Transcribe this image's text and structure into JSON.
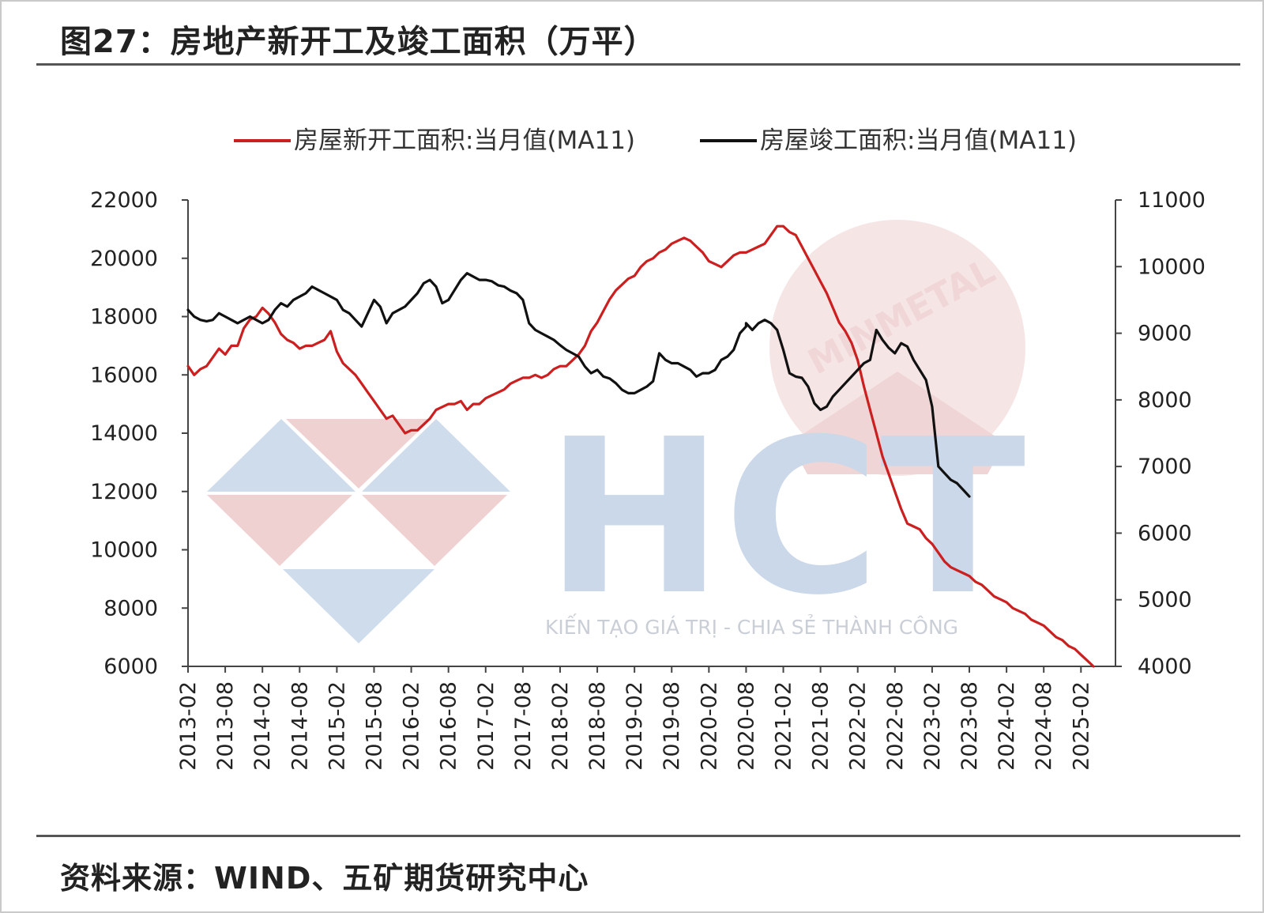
{
  "title": "图27：房地产新开工及竣工面积（万平）",
  "source": "资料来源：WIND、五矿期货研究中心",
  "watermark": {
    "brand": "HCT",
    "tagline": "KIẾN TẠO GIÁ TRỊ - CHIA SẺ THÀNH CÔNG",
    "seal_text": "MINMETAL",
    "colors": {
      "blue": "#c8d6e8",
      "red": "#eec9c9",
      "seal": "#f2dede"
    }
  },
  "chart_data": {
    "type": "line",
    "legend_position": "top",
    "grid": false,
    "x_ticks": [
      "2013-02",
      "2013-08",
      "2014-02",
      "2014-08",
      "2015-02",
      "2015-08",
      "2016-02",
      "2016-08",
      "2017-02",
      "2017-08",
      "2018-02",
      "2018-08",
      "2019-02",
      "2019-08",
      "2020-02",
      "2020-08",
      "2021-02",
      "2021-08",
      "2022-02",
      "2022-08",
      "2023-02",
      "2023-08",
      "2024-02",
      "2024-08",
      "2025-02"
    ],
    "x_range": [
      "2013-02",
      "2025-04"
    ],
    "left_axis": {
      "ylim": [
        6000,
        22000
      ],
      "ticks": [
        22000,
        20000,
        18000,
        16000,
        14000,
        12000,
        10000,
        8000,
        6000
      ]
    },
    "right_axis": {
      "ylim": [
        4000,
        11000
      ],
      "ticks": [
        11000,
        10000,
        9000,
        8000,
        7000,
        6000,
        5000,
        4000
      ]
    },
    "series": [
      {
        "name": "房屋新开工面积:当月值(MA11)",
        "axis": "left",
        "color": "#cc1f1f",
        "points": [
          [
            "2013-02",
            16300
          ],
          [
            "2013-03",
            16000
          ],
          [
            "2013-04",
            16200
          ],
          [
            "2013-05",
            16300
          ],
          [
            "2013-06",
            16600
          ],
          [
            "2013-07",
            16900
          ],
          [
            "2013-08",
            16700
          ],
          [
            "2013-09",
            17000
          ],
          [
            "2013-10",
            17000
          ],
          [
            "2013-11",
            17600
          ],
          [
            "2013-12",
            17900
          ],
          [
            "2014-01",
            18000
          ],
          [
            "2014-02",
            18300
          ],
          [
            "2014-03",
            18100
          ],
          [
            "2014-04",
            17800
          ],
          [
            "2014-05",
            17400
          ],
          [
            "2014-06",
            17200
          ],
          [
            "2014-07",
            17100
          ],
          [
            "2014-08",
            16900
          ],
          [
            "2014-09",
            17000
          ],
          [
            "2014-10",
            17000
          ],
          [
            "2014-11",
            17100
          ],
          [
            "2014-12",
            17200
          ],
          [
            "2015-01",
            17500
          ],
          [
            "2015-02",
            16800
          ],
          [
            "2015-03",
            16400
          ],
          [
            "2015-04",
            16200
          ],
          [
            "2015-05",
            16000
          ],
          [
            "2015-06",
            15700
          ],
          [
            "2015-07",
            15400
          ],
          [
            "2015-08",
            15100
          ],
          [
            "2015-09",
            14800
          ],
          [
            "2015-10",
            14500
          ],
          [
            "2015-11",
            14600
          ],
          [
            "2015-12",
            14300
          ],
          [
            "2016-01",
            14000
          ],
          [
            "2016-02",
            14100
          ],
          [
            "2016-03",
            14100
          ],
          [
            "2016-04",
            14300
          ],
          [
            "2016-05",
            14500
          ],
          [
            "2016-06",
            14800
          ],
          [
            "2016-07",
            14900
          ],
          [
            "2016-08",
            15000
          ],
          [
            "2016-09",
            15000
          ],
          [
            "2016-10",
            15100
          ],
          [
            "2016-11",
            14800
          ],
          [
            "2016-12",
            15000
          ],
          [
            "2017-01",
            15000
          ],
          [
            "2017-02",
            15200
          ],
          [
            "2017-03",
            15300
          ],
          [
            "2017-04",
            15400
          ],
          [
            "2017-05",
            15500
          ],
          [
            "2017-06",
            15700
          ],
          [
            "2017-07",
            15800
          ],
          [
            "2017-08",
            15900
          ],
          [
            "2017-09",
            15900
          ],
          [
            "2017-10",
            16000
          ],
          [
            "2017-11",
            15900
          ],
          [
            "2017-12",
            16000
          ],
          [
            "2018-01",
            16200
          ],
          [
            "2018-02",
            16300
          ],
          [
            "2018-03",
            16300
          ],
          [
            "2018-04",
            16500
          ],
          [
            "2018-05",
            16700
          ],
          [
            "2018-06",
            17000
          ],
          [
            "2018-07",
            17500
          ],
          [
            "2018-08",
            17800
          ],
          [
            "2018-09",
            18200
          ],
          [
            "2018-10",
            18600
          ],
          [
            "2018-11",
            18900
          ],
          [
            "2018-12",
            19100
          ],
          [
            "2019-01",
            19300
          ],
          [
            "2019-02",
            19400
          ],
          [
            "2019-03",
            19700
          ],
          [
            "2019-04",
            19900
          ],
          [
            "2019-05",
            20000
          ],
          [
            "2019-06",
            20200
          ],
          [
            "2019-07",
            20300
          ],
          [
            "2019-08",
            20500
          ],
          [
            "2019-09",
            20600
          ],
          [
            "2019-10",
            20700
          ],
          [
            "2019-11",
            20600
          ],
          [
            "2019-12",
            20400
          ],
          [
            "2020-01",
            20200
          ],
          [
            "2020-02",
            19900
          ],
          [
            "2020-03",
            19800
          ],
          [
            "2020-04",
            19700
          ],
          [
            "2020-05",
            19900
          ],
          [
            "2020-06",
            20100
          ],
          [
            "2020-07",
            20200
          ],
          [
            "2020-08",
            20200
          ],
          [
            "2020-09",
            20300
          ],
          [
            "2020-10",
            20400
          ],
          [
            "2020-11",
            20500
          ],
          [
            "2020-12",
            20800
          ],
          [
            "2021-01",
            21100
          ],
          [
            "2021-02",
            21100
          ],
          [
            "2021-03",
            20900
          ],
          [
            "2021-04",
            20800
          ],
          [
            "2021-05",
            20400
          ],
          [
            "2021-06",
            20000
          ],
          [
            "2021-07",
            19600
          ],
          [
            "2021-08",
            19200
          ],
          [
            "2021-09",
            18800
          ],
          [
            "2021-10",
            18300
          ],
          [
            "2021-11",
            17800
          ],
          [
            "2021-12",
            17500
          ],
          [
            "2022-01",
            17100
          ],
          [
            "2022-02",
            16500
          ],
          [
            "2022-03",
            15600
          ],
          [
            "2022-04",
            14800
          ],
          [
            "2022-05",
            14000
          ],
          [
            "2022-06",
            13200
          ],
          [
            "2022-07",
            12600
          ],
          [
            "2022-08",
            12000
          ],
          [
            "2022-09",
            11400
          ],
          [
            "2022-10",
            10900
          ],
          [
            "2022-11",
            10800
          ],
          [
            "2022-12",
            10700
          ],
          [
            "2023-01",
            10400
          ],
          [
            "2023-02",
            10200
          ],
          [
            "2023-03",
            9900
          ],
          [
            "2023-04",
            9600
          ],
          [
            "2023-05",
            9400
          ],
          [
            "2023-06",
            9300
          ],
          [
            "2023-07",
            9200
          ],
          [
            "2023-08",
            9100
          ],
          [
            "2023-09",
            8900
          ],
          [
            "2023-10",
            8800
          ],
          [
            "2023-11",
            8600
          ],
          [
            "2023-12",
            8400
          ],
          [
            "2024-01",
            8300
          ],
          [
            "2024-02",
            8200
          ],
          [
            "2024-03",
            8000
          ],
          [
            "2024-04",
            7900
          ],
          [
            "2024-05",
            7800
          ],
          [
            "2024-06",
            7600
          ],
          [
            "2024-07",
            7500
          ],
          [
            "2024-08",
            7400
          ],
          [
            "2024-09",
            7200
          ],
          [
            "2024-10",
            7000
          ],
          [
            "2024-11",
            6900
          ],
          [
            "2024-12",
            6700
          ],
          [
            "2025-01",
            6600
          ],
          [
            "2025-02",
            6400
          ],
          [
            "2025-03",
            6200
          ],
          [
            "2025-04",
            6000
          ]
        ]
      },
      {
        "name": "房屋竣工面积:当月值(MA11)",
        "axis": "right",
        "color": "#111111",
        "points": [
          [
            "2013-02",
            9350
          ],
          [
            "2013-03",
            9250
          ],
          [
            "2013-04",
            9200
          ],
          [
            "2013-05",
            9180
          ],
          [
            "2013-06",
            9200
          ],
          [
            "2013-07",
            9300
          ],
          [
            "2013-08",
            9250
          ],
          [
            "2013-09",
            9200
          ],
          [
            "2013-10",
            9150
          ],
          [
            "2013-11",
            9200
          ],
          [
            "2013-12",
            9250
          ],
          [
            "2014-01",
            9200
          ],
          [
            "2014-02",
            9150
          ],
          [
            "2014-03",
            9200
          ],
          [
            "2014-04",
            9350
          ],
          [
            "2014-05",
            9450
          ],
          [
            "2014-06",
            9400
          ],
          [
            "2014-07",
            9500
          ],
          [
            "2014-08",
            9550
          ],
          [
            "2014-09",
            9600
          ],
          [
            "2014-10",
            9700
          ],
          [
            "2014-11",
            9650
          ],
          [
            "2014-12",
            9600
          ],
          [
            "2015-01",
            9550
          ],
          [
            "2015-02",
            9500
          ],
          [
            "2015-03",
            9350
          ],
          [
            "2015-04",
            9300
          ],
          [
            "2015-05",
            9200
          ],
          [
            "2015-06",
            9100
          ],
          [
            "2015-07",
            9300
          ],
          [
            "2015-08",
            9500
          ],
          [
            "2015-09",
            9400
          ],
          [
            "2015-10",
            9150
          ],
          [
            "2015-11",
            9300
          ],
          [
            "2015-12",
            9350
          ],
          [
            "2016-01",
            9400
          ],
          [
            "2016-02",
            9500
          ],
          [
            "2016-03",
            9600
          ],
          [
            "2016-04",
            9750
          ],
          [
            "2016-05",
            9800
          ],
          [
            "2016-06",
            9700
          ],
          [
            "2016-07",
            9450
          ],
          [
            "2016-08",
            9500
          ],
          [
            "2016-09",
            9650
          ],
          [
            "2016-10",
            9800
          ],
          [
            "2016-11",
            9900
          ],
          [
            "2016-12",
            9850
          ],
          [
            "2017-01",
            9800
          ],
          [
            "2017-02",
            9800
          ],
          [
            "2017-03",
            9780
          ],
          [
            "2017-04",
            9720
          ],
          [
            "2017-05",
            9700
          ],
          [
            "2017-06",
            9640
          ],
          [
            "2017-07",
            9600
          ],
          [
            "2017-08",
            9500
          ],
          [
            "2017-09",
            9150
          ],
          [
            "2017-10",
            9050
          ],
          [
            "2017-11",
            9000
          ],
          [
            "2017-12",
            8950
          ],
          [
            "2018-01",
            8900
          ],
          [
            "2018-02",
            8820
          ],
          [
            "2018-03",
            8750
          ],
          [
            "2018-04",
            8700
          ],
          [
            "2018-05",
            8650
          ],
          [
            "2018-06",
            8500
          ],
          [
            "2018-07",
            8400
          ],
          [
            "2018-08",
            8450
          ],
          [
            "2018-09",
            8350
          ],
          [
            "2018-10",
            8320
          ],
          [
            "2018-11",
            8250
          ],
          [
            "2018-12",
            8150
          ],
          [
            "2019-01",
            8100
          ],
          [
            "2019-02",
            8100
          ],
          [
            "2019-03",
            8150
          ],
          [
            "2019-04",
            8200
          ],
          [
            "2019-05",
            8280
          ],
          [
            "2019-06",
            8700
          ],
          [
            "2019-07",
            8600
          ],
          [
            "2019-08",
            8550
          ],
          [
            "2019-09",
            8550
          ],
          [
            "2019-10",
            8500
          ],
          [
            "2019-11",
            8450
          ],
          [
            "2019-12",
            8350
          ],
          [
            "2020-01",
            8400
          ],
          [
            "2020-02",
            8400
          ],
          [
            "2020-03",
            8450
          ],
          [
            "2020-04",
            8600
          ],
          [
            "2020-05",
            8650
          ],
          [
            "2020-06",
            8750
          ],
          [
            "2020-07",
            9000
          ],
          [
            "2020-08",
            9100
          ],
          [
            "2020-08",
            9150
          ],
          [
            "2020-09",
            9050
          ],
          [
            "2020-10",
            9150
          ],
          [
            "2020-11",
            9200
          ],
          [
            "2020-12",
            9150
          ],
          [
            "2021-01",
            9050
          ],
          [
            "2021-02",
            8750
          ],
          [
            "2021-03",
            8400
          ],
          [
            "2021-04",
            8350
          ],
          [
            "2021-05",
            8330
          ],
          [
            "2021-06",
            8200
          ],
          [
            "2021-07",
            7950
          ],
          [
            "2021-08",
            7850
          ],
          [
            "2021-09",
            7900
          ],
          [
            "2021-10",
            8050
          ],
          [
            "2021-11",
            8150
          ],
          [
            "2021-12",
            8250
          ],
          [
            "2022-01",
            8350
          ],
          [
            "2022-02",
            8450
          ],
          [
            "2022-03",
            8550
          ],
          [
            "2022-04",
            8600
          ],
          [
            "2022-05",
            9050
          ],
          [
            "2022-06",
            8900
          ],
          [
            "2022-07",
            8780
          ],
          [
            "2022-08",
            8700
          ],
          [
            "2022-09",
            8850
          ],
          [
            "2022-10",
            8800
          ],
          [
            "2022-11",
            8600
          ],
          [
            "2022-12",
            8450
          ],
          [
            "2023-01",
            8300
          ],
          [
            "2023-02",
            7900
          ],
          [
            "2023-03",
            7000
          ],
          [
            "2023-04",
            6900
          ],
          [
            "2023-05",
            6800
          ],
          [
            "2023-06",
            6750
          ],
          [
            "2023-07",
            6650
          ],
          [
            "2023-08",
            6550
          ]
        ]
      }
    ]
  }
}
